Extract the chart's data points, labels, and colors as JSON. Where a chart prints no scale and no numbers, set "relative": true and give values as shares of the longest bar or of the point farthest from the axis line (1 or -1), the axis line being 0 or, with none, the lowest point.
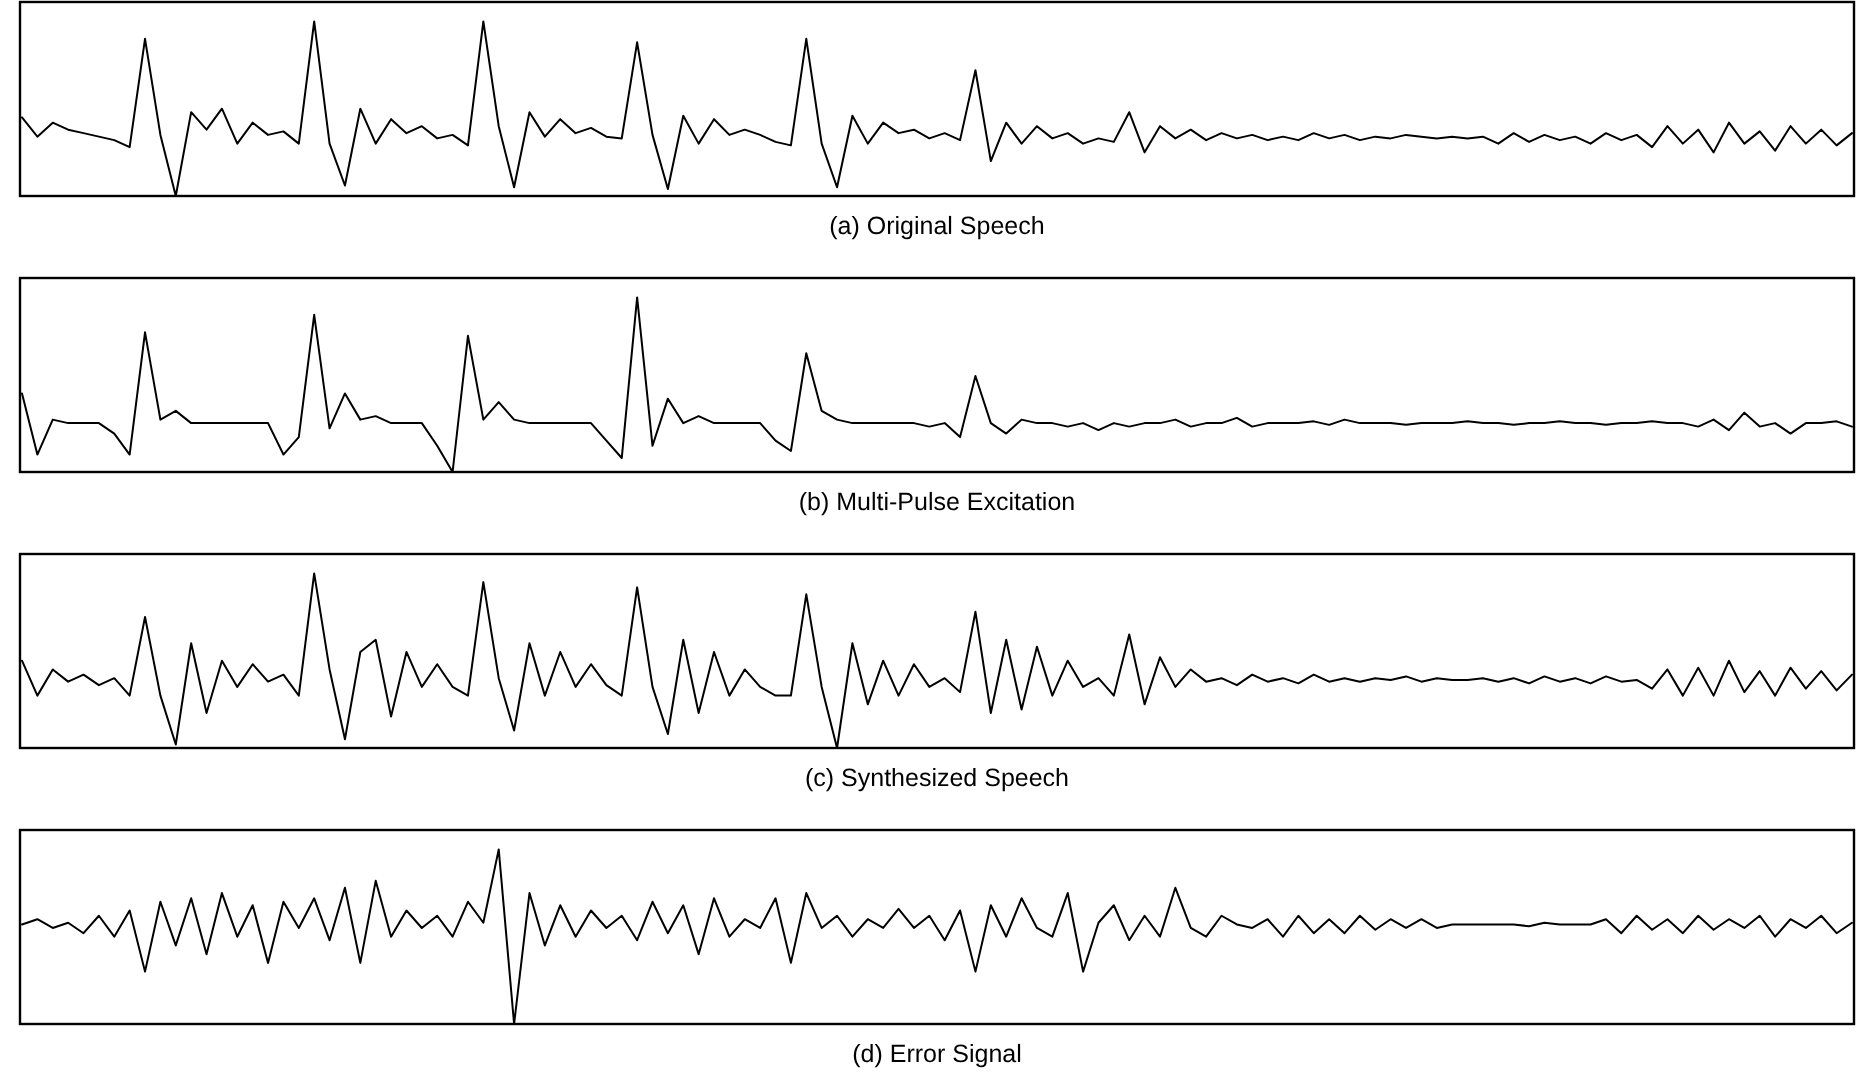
{
  "chart_data": [
    {
      "type": "line",
      "title": "(a) Original Speech",
      "relative": true,
      "color": "#000000",
      "categories": [
        null,
        null,
        null,
        null,
        null,
        null,
        null,
        null,
        null,
        null,
        null,
        null,
        null,
        null,
        null,
        null,
        null,
        null,
        null,
        null,
        null,
        null,
        null,
        null,
        null,
        null,
        null,
        null,
        null,
        null,
        null,
        null,
        null,
        null,
        null,
        null,
        null,
        null,
        null,
        null,
        null,
        null,
        null,
        null,
        null,
        null,
        null,
        null,
        null,
        null,
        null,
        null,
        null,
        null,
        null,
        null,
        null,
        null,
        null,
        null,
        null,
        null,
        null,
        null,
        null,
        null,
        null,
        null,
        null,
        null,
        null,
        null,
        null,
        null,
        null,
        null,
        null,
        null,
        null,
        null,
        null,
        null,
        null,
        null,
        null,
        null,
        null,
        null,
        null,
        null,
        null,
        null,
        null,
        null,
        null,
        null,
        null,
        null,
        null,
        null,
        null,
        null,
        null,
        null,
        null,
        null,
        null,
        null,
        null,
        null,
        null,
        null,
        null,
        null,
        null,
        null,
        null,
        null,
        null,
        null
      ],
      "values": [
        0.45,
        0.34,
        0.42,
        0.38,
        0.36,
        0.34,
        0.32,
        0.28,
        0.9,
        0.35,
        0.0,
        0.48,
        0.38,
        0.5,
        0.3,
        0.42,
        0.35,
        0.37,
        0.3,
        1.0,
        0.3,
        0.06,
        0.5,
        0.3,
        0.44,
        0.36,
        0.4,
        0.33,
        0.35,
        0.29,
        1.0,
        0.4,
        0.05,
        0.48,
        0.34,
        0.44,
        0.36,
        0.39,
        0.34,
        0.33,
        0.88,
        0.35,
        0.04,
        0.46,
        0.3,
        0.44,
        0.35,
        0.38,
        0.35,
        0.31,
        0.29,
        0.9,
        0.3,
        0.05,
        0.46,
        0.3,
        0.42,
        0.36,
        0.38,
        0.33,
        0.36,
        0.32,
        0.72,
        0.2,
        0.42,
        0.3,
        0.4,
        0.33,
        0.36,
        0.3,
        0.33,
        0.31,
        0.48,
        0.25,
        0.4,
        0.33,
        0.38,
        0.32,
        0.36,
        0.33,
        0.35,
        0.32,
        0.34,
        0.32,
        0.36,
        0.33,
        0.35,
        0.32,
        0.34,
        0.33,
        0.35,
        0.34,
        0.33,
        0.34,
        0.33,
        0.34,
        0.3,
        0.36,
        0.31,
        0.35,
        0.32,
        0.34,
        0.3,
        0.36,
        0.32,
        0.35,
        0.28,
        0.4,
        0.3,
        0.38,
        0.25,
        0.42,
        0.3,
        0.37,
        0.26,
        0.4,
        0.3,
        0.38,
        0.29,
        0.36
      ]
    },
    {
      "type": "line",
      "title": "(b) Multi-Pulse Excitation",
      "relative": true,
      "color": "#000000",
      "categories": [
        null,
        null,
        null,
        null,
        null,
        null,
        null,
        null,
        null,
        null,
        null,
        null,
        null,
        null,
        null,
        null,
        null,
        null,
        null,
        null,
        null,
        null,
        null,
        null,
        null,
        null,
        null,
        null,
        null,
        null,
        null,
        null,
        null,
        null,
        null,
        null,
        null,
        null,
        null,
        null,
        null,
        null,
        null,
        null,
        null,
        null,
        null,
        null,
        null,
        null,
        null,
        null,
        null,
        null,
        null,
        null,
        null,
        null,
        null,
        null,
        null,
        null,
        null,
        null,
        null,
        null,
        null,
        null,
        null,
        null,
        null,
        null,
        null,
        null,
        null,
        null,
        null,
        null,
        null,
        null,
        null,
        null,
        null,
        null,
        null,
        null,
        null,
        null,
        null,
        null,
        null,
        null,
        null,
        null,
        null,
        null,
        null,
        null,
        null,
        null,
        null,
        null,
        null,
        null,
        null,
        null,
        null,
        null,
        null,
        null,
        null,
        null,
        null,
        null,
        null,
        null,
        null,
        null,
        null,
        null
      ],
      "values": [
        0.45,
        0.1,
        0.3,
        0.28,
        0.28,
        0.28,
        0.22,
        0.1,
        0.8,
        0.3,
        0.35,
        0.28,
        0.28,
        0.28,
        0.28,
        0.28,
        0.28,
        0.1,
        0.2,
        0.9,
        0.25,
        0.45,
        0.3,
        0.32,
        0.28,
        0.28,
        0.28,
        0.15,
        0.0,
        0.78,
        0.3,
        0.4,
        0.3,
        0.28,
        0.28,
        0.28,
        0.28,
        0.28,
        0.18,
        0.08,
        1.0,
        0.15,
        0.42,
        0.28,
        0.32,
        0.28,
        0.28,
        0.28,
        0.28,
        0.18,
        0.12,
        0.68,
        0.35,
        0.3,
        0.28,
        0.28,
        0.28,
        0.28,
        0.28,
        0.26,
        0.28,
        0.2,
        0.55,
        0.28,
        0.22,
        0.3,
        0.28,
        0.28,
        0.26,
        0.28,
        0.24,
        0.28,
        0.26,
        0.28,
        0.28,
        0.3,
        0.26,
        0.28,
        0.28,
        0.31,
        0.26,
        0.28,
        0.28,
        0.28,
        0.29,
        0.27,
        0.3,
        0.28,
        0.28,
        0.28,
        0.27,
        0.28,
        0.28,
        0.28,
        0.29,
        0.28,
        0.28,
        0.27,
        0.28,
        0.28,
        0.29,
        0.28,
        0.28,
        0.27,
        0.28,
        0.28,
        0.29,
        0.28,
        0.28,
        0.26,
        0.3,
        0.24,
        0.34,
        0.26,
        0.28,
        0.22,
        0.28,
        0.28,
        0.29,
        0.26
      ]
    },
    {
      "type": "line",
      "title": "(c) Synthesized Speech",
      "relative": true,
      "color": "#000000",
      "categories": [
        null,
        null,
        null,
        null,
        null,
        null,
        null,
        null,
        null,
        null,
        null,
        null,
        null,
        null,
        null,
        null,
        null,
        null,
        null,
        null,
        null,
        null,
        null,
        null,
        null,
        null,
        null,
        null,
        null,
        null,
        null,
        null,
        null,
        null,
        null,
        null,
        null,
        null,
        null,
        null,
        null,
        null,
        null,
        null,
        null,
        null,
        null,
        null,
        null,
        null,
        null,
        null,
        null,
        null,
        null,
        null,
        null,
        null,
        null,
        null,
        null,
        null,
        null,
        null,
        null,
        null,
        null,
        null,
        null,
        null,
        null,
        null,
        null,
        null,
        null,
        null,
        null,
        null,
        null,
        null,
        null,
        null,
        null,
        null,
        null,
        null,
        null,
        null,
        null,
        null,
        null,
        null,
        null,
        null,
        null,
        null,
        null,
        null,
        null,
        null,
        null,
        null,
        null,
        null,
        null,
        null,
        null,
        null,
        null,
        null,
        null,
        null,
        null,
        null,
        null,
        null,
        null,
        null,
        null,
        null
      ],
      "values": [
        0.5,
        0.3,
        0.45,
        0.38,
        0.42,
        0.36,
        0.4,
        0.3,
        0.75,
        0.3,
        0.02,
        0.6,
        0.2,
        0.5,
        0.35,
        0.48,
        0.38,
        0.42,
        0.3,
        1.0,
        0.45,
        0.05,
        0.55,
        0.62,
        0.18,
        0.55,
        0.35,
        0.48,
        0.35,
        0.3,
        0.95,
        0.4,
        0.1,
        0.6,
        0.3,
        0.55,
        0.35,
        0.48,
        0.36,
        0.3,
        0.92,
        0.35,
        0.08,
        0.62,
        0.2,
        0.55,
        0.3,
        0.45,
        0.35,
        0.3,
        0.3,
        0.88,
        0.35,
        0.0,
        0.6,
        0.25,
        0.5,
        0.3,
        0.48,
        0.35,
        0.4,
        0.32,
        0.78,
        0.2,
        0.62,
        0.22,
        0.58,
        0.3,
        0.5,
        0.35,
        0.4,
        0.3,
        0.65,
        0.25,
        0.52,
        0.35,
        0.45,
        0.38,
        0.4,
        0.36,
        0.42,
        0.38,
        0.4,
        0.37,
        0.42,
        0.38,
        0.4,
        0.38,
        0.4,
        0.39,
        0.41,
        0.38,
        0.4,
        0.39,
        0.39,
        0.4,
        0.38,
        0.4,
        0.37,
        0.41,
        0.38,
        0.4,
        0.37,
        0.41,
        0.38,
        0.39,
        0.34,
        0.45,
        0.3,
        0.46,
        0.3,
        0.5,
        0.32,
        0.44,
        0.3,
        0.46,
        0.34,
        0.44,
        0.33,
        0.42
      ]
    },
    {
      "type": "line",
      "title": "(d) Error Signal",
      "relative": true,
      "color": "#000000",
      "categories": [
        null,
        null,
        null,
        null,
        null,
        null,
        null,
        null,
        null,
        null,
        null,
        null,
        null,
        null,
        null,
        null,
        null,
        null,
        null,
        null,
        null,
        null,
        null,
        null,
        null,
        null,
        null,
        null,
        null,
        null,
        null,
        null,
        null,
        null,
        null,
        null,
        null,
        null,
        null,
        null,
        null,
        null,
        null,
        null,
        null,
        null,
        null,
        null,
        null,
        null,
        null,
        null,
        null,
        null,
        null,
        null,
        null,
        null,
        null,
        null,
        null,
        null,
        null,
        null,
        null,
        null,
        null,
        null,
        null,
        null,
        null,
        null,
        null,
        null,
        null,
        null,
        null,
        null,
        null,
        null,
        null,
        null,
        null,
        null,
        null,
        null,
        null,
        null,
        null,
        null,
        null,
        null,
        null,
        null,
        null,
        null,
        null,
        null,
        null,
        null,
        null,
        null,
        null,
        null,
        null,
        null,
        null,
        null,
        null,
        null,
        null,
        null,
        null,
        null,
        null,
        null,
        null,
        null,
        null,
        null
      ],
      "values": [
        0.57,
        0.6,
        0.55,
        0.58,
        0.52,
        0.62,
        0.5,
        0.65,
        0.3,
        0.7,
        0.45,
        0.72,
        0.4,
        0.75,
        0.5,
        0.68,
        0.35,
        0.7,
        0.55,
        0.72,
        0.48,
        0.78,
        0.35,
        0.82,
        0.5,
        0.65,
        0.55,
        0.62,
        0.5,
        0.7,
        0.58,
        1.0,
        0.0,
        0.75,
        0.45,
        0.68,
        0.5,
        0.65,
        0.55,
        0.62,
        0.48,
        0.7,
        0.52,
        0.68,
        0.4,
        0.72,
        0.5,
        0.6,
        0.55,
        0.72,
        0.35,
        0.75,
        0.55,
        0.62,
        0.5,
        0.6,
        0.55,
        0.66,
        0.55,
        0.62,
        0.48,
        0.65,
        0.3,
        0.68,
        0.5,
        0.72,
        0.55,
        0.5,
        0.75,
        0.3,
        0.58,
        0.68,
        0.48,
        0.62,
        0.5,
        0.78,
        0.55,
        0.5,
        0.62,
        0.57,
        0.55,
        0.6,
        0.5,
        0.62,
        0.52,
        0.6,
        0.52,
        0.62,
        0.54,
        0.6,
        0.55,
        0.6,
        0.55,
        0.57,
        0.57,
        0.57,
        0.57,
        0.57,
        0.56,
        0.58,
        0.57,
        0.57,
        0.57,
        0.6,
        0.52,
        0.62,
        0.54,
        0.6,
        0.52,
        0.62,
        0.54,
        0.6,
        0.55,
        0.62,
        0.5,
        0.6,
        0.55,
        0.62,
        0.52,
        0.58
      ]
    }
  ]
}
